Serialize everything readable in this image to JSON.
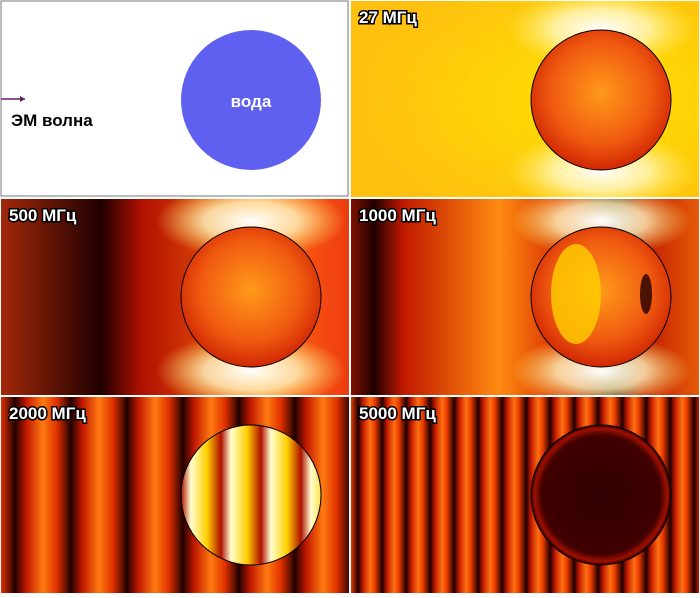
{
  "source": {
    "wave_label": "ЭМ волна",
    "object_label": "вода"
  },
  "panels": [
    {
      "frequency": "27 МГц"
    },
    {
      "frequency": "500 МГц"
    },
    {
      "frequency": "1000 МГц"
    },
    {
      "frequency": "2000 МГц"
    },
    {
      "frequency": "5000 МГц"
    }
  ]
}
